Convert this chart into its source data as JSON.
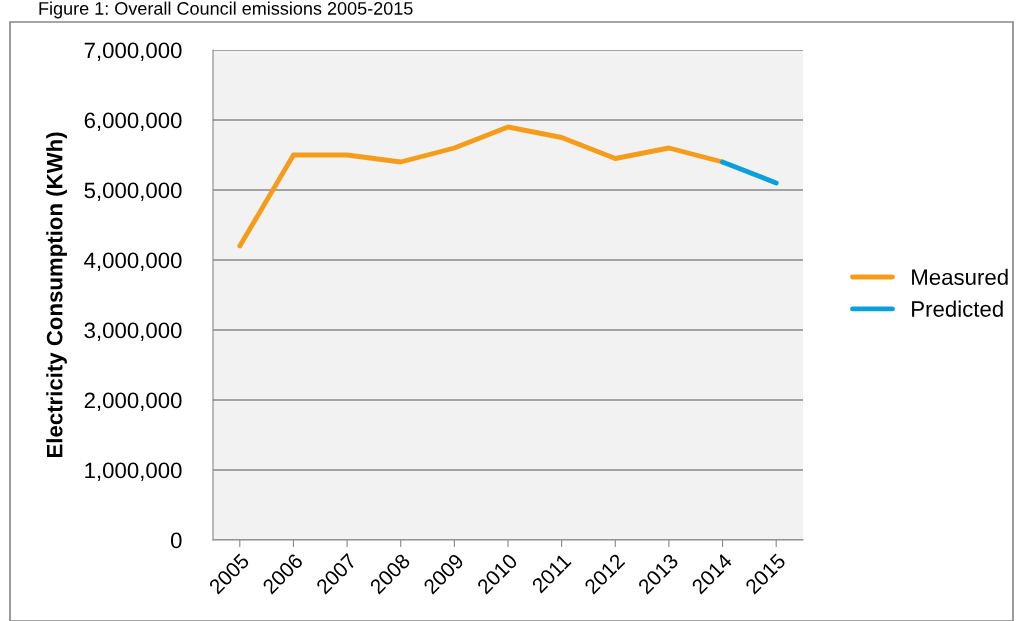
{
  "chart_data": {
    "type": "line",
    "title": "Figure 1: Overall Council emissions 2005-2015",
    "ylabel": "Electricity Consumption (KWh)",
    "categories": [
      "2005",
      "2006",
      "2007",
      "2008",
      "2009",
      "2010",
      "2011",
      "2012",
      "2013",
      "2014",
      "2015"
    ],
    "series": [
      {
        "name": "Measured",
        "color": "#f59d1a",
        "values": [
          4200000,
          5500000,
          5500000,
          5400000,
          5600000,
          5900000,
          5750000,
          5450000,
          5600000,
          5400000,
          null
        ]
      },
      {
        "name": "Predicted",
        "color": "#0aa0dc",
        "values": [
          null,
          null,
          null,
          null,
          null,
          null,
          null,
          null,
          null,
          5400000,
          5100000
        ]
      }
    ],
    "ylim": [
      0,
      7000000
    ],
    "yticks": [
      {
        "value": 0,
        "label": "0"
      },
      {
        "value": 1000000,
        "label": "1,000,000"
      },
      {
        "value": 2000000,
        "label": "2,000,000"
      },
      {
        "value": 3000000,
        "label": "3,000,000"
      },
      {
        "value": 4000000,
        "label": "4,000,000"
      },
      {
        "value": 5000000,
        "label": "5,000,000"
      },
      {
        "value": 6000000,
        "label": "6,000,000"
      },
      {
        "value": 7000000,
        "label": "7,000,000"
      }
    ],
    "grid": "y",
    "legend": "right",
    "marker": "none",
    "line_style": "solid"
  }
}
